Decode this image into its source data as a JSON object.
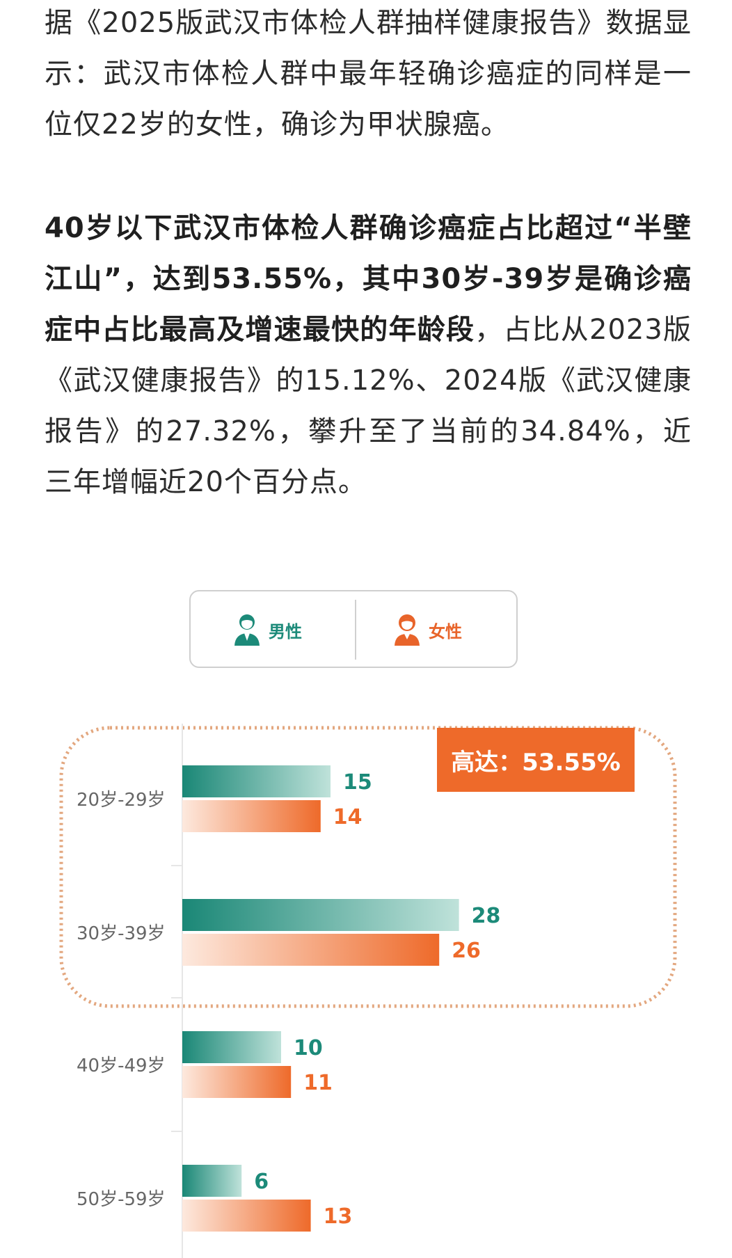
{
  "article": {
    "para1": "据《2025版武汉市体检人群抽样健康报告》数据显示：武汉市体检人群中最年轻确诊癌症的同样是一位仅22岁的女性，确诊为甲状腺癌。",
    "para2_bold": "40岁以下武汉市体检人群确诊癌症占比超过“半壁江山”，达到53.55%，其中30岁-39岁是确诊癌症中占比最高及增速最快的年龄段",
    "para2_rest": "，占比从2023版《武汉健康报告》的15.12%、2024版《武汉健康报告》的27.32%，攀升至了当前的34.84%，近三年增幅近20个百分点。"
  },
  "legend": {
    "male_label": "男性",
    "female_label": "女性",
    "male_icon": "male-person-icon",
    "female_icon": "female-person-icon"
  },
  "highlight": {
    "text": "高达：53.55%"
  },
  "colors": {
    "male": "#1c8a79",
    "female": "#ee6a2a",
    "highlight_border": "#e3a77f"
  },
  "chart_data": {
    "type": "bar",
    "orientation": "horizontal",
    "categories": [
      "20岁-29岁",
      "30岁-39岁",
      "40岁-49岁",
      "50岁-59岁"
    ],
    "series": [
      {
        "name": "男性",
        "values": [
          15,
          28,
          10,
          6
        ]
      },
      {
        "name": "女性",
        "values": [
          14,
          26,
          11,
          13
        ]
      }
    ],
    "title": "",
    "xlabel": "",
    "ylabel": "",
    "xlim": [
      0,
      30
    ],
    "grid": false,
    "legend": "top"
  }
}
